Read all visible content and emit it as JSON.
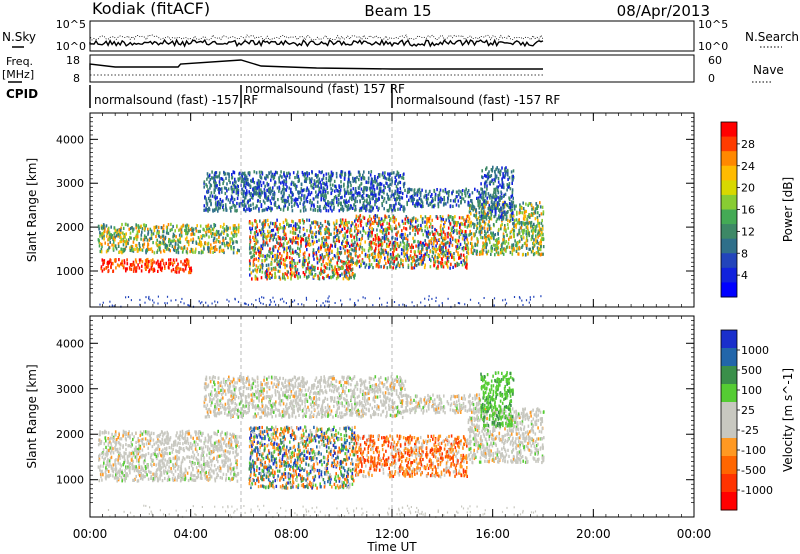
{
  "header": {
    "station": "Kodiak (fitACF)",
    "beam": "Beam 15",
    "date": "08/Apr/2013"
  },
  "summary_panels": {
    "nsky_label": "N.Sky",
    "nsky_ticks": [
      "10^5",
      "10^0"
    ],
    "nsearch_label": "N.Search",
    "nsearch_ticks": [
      "10^5",
      "10^0"
    ],
    "freq_label_1": "Freq.",
    "freq_label_2": "[MHz]",
    "freq_ticks": [
      "18",
      "8"
    ],
    "nave_label": "Nave",
    "nave_ticks": [
      "60",
      "0"
    ],
    "cpid_label": "CPID",
    "cpid_segments": [
      {
        "text": "normalsound (fast) -157 RF",
        "start_hour": 0.0
      },
      {
        "text": "normalsound (fast) 157 RF",
        "start_hour": 6.0
      },
      {
        "text": "normalsound (fast) -157 RF",
        "start_hour": 12.0
      }
    ]
  },
  "chart_data": [
    {
      "type": "heatmap",
      "name": "power",
      "ylabel": "Slant Range [km]",
      "xlabel": "Time UT",
      "x_ticks": [
        "00:00",
        "04:00",
        "08:00",
        "12:00",
        "16:00",
        "20:00",
        "00:00"
      ],
      "x_tick_hours": [
        0,
        4,
        8,
        12,
        16,
        20,
        24
      ],
      "y_ticks": [
        "1000",
        "2000",
        "3000",
        "4000"
      ],
      "y_tick_values": [
        1000,
        2000,
        3000,
        4000
      ],
      "ylim": [
        180,
        4600
      ],
      "xlim": [
        0,
        24
      ],
      "data_end_hour": 18.0,
      "colorbar_label": "Power [dB]",
      "colorbar_ticks": [
        "28",
        "24",
        "20",
        "16",
        "12",
        "8",
        "4"
      ],
      "colorbar_values": [
        28,
        24,
        20,
        16,
        12,
        8,
        4
      ],
      "colorbar_colors": [
        "#ff0000",
        "#ff3c00",
        "#ff8800",
        "#ffbb00",
        "#d8d800",
        "#88cc33",
        "#44aa55",
        "#3d8866",
        "#2f6f8a",
        "#2244bb",
        "#1122dd",
        "#0000ff"
      ],
      "regions": [
        {
          "t0": 0.3,
          "t1": 5.9,
          "r0": 1450,
          "r1": 2100,
          "level": "mid"
        },
        {
          "t0": 0.4,
          "t1": 4.0,
          "r0": 1000,
          "r1": 1300,
          "level": "high"
        },
        {
          "t0": 6.3,
          "t1": 10.5,
          "r0": 850,
          "r1": 2200,
          "level": "mixed"
        },
        {
          "t0": 10.5,
          "t1": 15.0,
          "r0": 1100,
          "r1": 2300,
          "level": "mixed"
        },
        {
          "t0": 15.0,
          "t1": 18.0,
          "r0": 1400,
          "r1": 2600,
          "level": "mid"
        },
        {
          "t0": 4.5,
          "t1": 12.5,
          "r0": 2400,
          "r1": 3300,
          "level": "low"
        },
        {
          "t0": 12.5,
          "t1": 15.5,
          "r0": 2500,
          "r1": 2900,
          "level": "low"
        },
        {
          "t0": 15.5,
          "t1": 16.8,
          "r0": 2200,
          "r1": 3400,
          "level": "low"
        }
      ]
    },
    {
      "type": "heatmap",
      "name": "velocity",
      "ylabel": "Slant Range [km]",
      "xlabel": "Time UT",
      "x_ticks": [
        "00:00",
        "04:00",
        "08:00",
        "12:00",
        "16:00",
        "20:00",
        "00:00"
      ],
      "x_tick_hours": [
        0,
        4,
        8,
        12,
        16,
        20,
        24
      ],
      "y_ticks": [
        "1000",
        "2000",
        "3000",
        "4000"
      ],
      "y_tick_values": [
        1000,
        2000,
        3000,
        4000
      ],
      "ylim": [
        180,
        4600
      ],
      "xlim": [
        0,
        24
      ],
      "data_end_hour": 18.0,
      "colorbar_label": "Velocity [m s^-1]",
      "colorbar_ticks": [
        "1000",
        "500",
        "100",
        "25",
        "-25",
        "-100",
        "-500",
        "-1000"
      ],
      "colorbar_values": [
        1000,
        500,
        100,
        25,
        -25,
        -100,
        -500,
        -1000
      ],
      "colorbar_colors": [
        "#1a2fcc",
        "#2266aa",
        "#3a8f4a",
        "#55cc33",
        "#c8c8c0",
        "#c8c8c0",
        "#ff9922",
        "#ff6600",
        "#ff3300",
        "#ff0000"
      ],
      "regions": [
        {
          "t0": 0.3,
          "t1": 5.9,
          "r0": 1000,
          "r1": 2100,
          "level": "grey"
        },
        {
          "t0": 6.3,
          "t1": 10.5,
          "r0": 850,
          "r1": 2200,
          "level": "vmixed"
        },
        {
          "t0": 10.5,
          "t1": 15.0,
          "r0": 1100,
          "r1": 2000,
          "level": "orange"
        },
        {
          "t0": 15.0,
          "t1": 18.0,
          "r0": 1400,
          "r1": 2600,
          "level": "grey"
        },
        {
          "t0": 4.5,
          "t1": 12.5,
          "r0": 2400,
          "r1": 3300,
          "level": "grey"
        },
        {
          "t0": 12.5,
          "t1": 15.5,
          "r0": 2500,
          "r1": 2900,
          "level": "grey"
        },
        {
          "t0": 15.5,
          "t1": 16.8,
          "r0": 2200,
          "r1": 3400,
          "level": "green"
        }
      ]
    }
  ]
}
